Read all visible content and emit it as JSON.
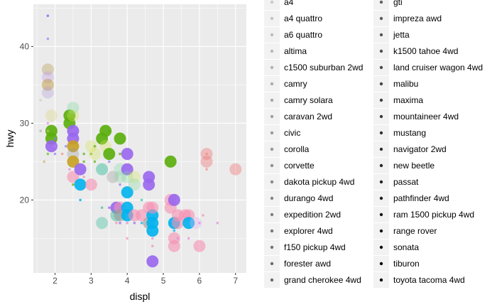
{
  "chart_data": {
    "type": "scatter",
    "xlabel": "displ",
    "ylabel": "hwy",
    "xlim": [
      1.4,
      7.3
    ],
    "ylim": [
      10.5,
      45.5
    ],
    "x_ticks": [
      2,
      3,
      4,
      5,
      6,
      7
    ],
    "y_ticks": [
      20,
      30,
      40
    ],
    "grid": true,
    "legend_position": "right",
    "legend": {
      "left": [
        "a4",
        "a4 quattro",
        "a6 quattro",
        "altima",
        "c1500 suburban 2wd",
        "camry",
        "camry solara",
        "caravan 2wd",
        "civic",
        "corolla",
        "corvette",
        "dakota pickup 4wd",
        "durango 4wd",
        "expedition 2wd",
        "explorer 4wd",
        "f150 pickup 4wd",
        "forester awd",
        "grand cherokee 4wd"
      ],
      "right": [
        "gti",
        "impreza awd",
        "jetta",
        "k1500 tahoe 4wd",
        "land cruiser wagon 4wd",
        "malibu",
        "maxima",
        "mountaineer 4wd",
        "mustang",
        "navigator 2wd",
        "new beetle",
        "passat",
        "pathfinder 4wd",
        "ram 1500 pickup 4wd",
        "range rover",
        "sonata",
        "tiburon",
        "toyota tacoma 4wd"
      ]
    },
    "points": [
      {
        "x": 1.8,
        "y": 44,
        "size": 1,
        "alpha": 0.9,
        "color": "#8b7cf6"
      },
      {
        "x": 1.8,
        "y": 41,
        "size": 1,
        "alpha": 0.8,
        "color": "#a78bfa"
      },
      {
        "x": 1.8,
        "y": 37,
        "size": 4,
        "alpha": 0.4,
        "color": "#b9a25c"
      },
      {
        "x": 1.8,
        "y": 36,
        "size": 4,
        "alpha": 0.4,
        "color": "#c4a3e8"
      },
      {
        "x": 1.8,
        "y": 35,
        "size": 4,
        "alpha": 0.5,
        "color": "#c09a40"
      },
      {
        "x": 1.8,
        "y": 34,
        "size": 4,
        "alpha": 0.35,
        "color": "#b39ddb"
      },
      {
        "x": 1.6,
        "y": 33,
        "size": 1,
        "alpha": 0.5,
        "color": "#c0c0c0"
      },
      {
        "x": 1.9,
        "y": 31,
        "size": 4,
        "alpha": 0.3,
        "color": "#d8d070"
      },
      {
        "x": 1.8,
        "y": 30,
        "size": 1,
        "alpha": 0.7,
        "color": "#e38bd8"
      },
      {
        "x": 1.6,
        "y": 29,
        "size": 1,
        "alpha": 0.6,
        "color": "#a8a8a8"
      },
      {
        "x": 1.9,
        "y": 29,
        "size": 4,
        "alpha": 0.9,
        "color": "#5aae0a"
      },
      {
        "x": 1.9,
        "y": 28,
        "size": 4,
        "alpha": 0.9,
        "color": "#5aae0a"
      },
      {
        "x": 1.9,
        "y": 27,
        "size": 4,
        "alpha": 0.9,
        "color": "#9966ee"
      },
      {
        "x": 1.8,
        "y": 29,
        "size": 1,
        "alpha": 0.6,
        "color": "#d0c070"
      },
      {
        "x": 1.8,
        "y": 26,
        "size": 1,
        "alpha": 0.6,
        "color": "#5aae0a"
      },
      {
        "x": 1.7,
        "y": 25,
        "size": 1,
        "alpha": 0.6,
        "color": "#d7a24c"
      },
      {
        "x": 2.0,
        "y": 28,
        "size": 1,
        "alpha": 0.7,
        "color": "#8b7cf6"
      },
      {
        "x": 2.0,
        "y": 26,
        "size": 1,
        "alpha": 0.7,
        "color": "#8b7cf6"
      },
      {
        "x": 2.0,
        "y": 27,
        "size": 1,
        "alpha": 0.7,
        "color": "#a78bfa"
      },
      {
        "x": 2.2,
        "y": 26,
        "size": 1,
        "alpha": 0.6,
        "color": "#f08080"
      },
      {
        "x": 2.3,
        "y": 27,
        "size": 1,
        "alpha": 0.7,
        "color": "#8b7cf6"
      },
      {
        "x": 2.4,
        "y": 31,
        "size": 4,
        "alpha": 0.9,
        "color": "#5aae0a"
      },
      {
        "x": 2.4,
        "y": 30,
        "size": 4,
        "alpha": 0.9,
        "color": "#5aae0a"
      },
      {
        "x": 2.5,
        "y": 32,
        "size": 4,
        "alpha": 0.35,
        "color": "#7ed6a0"
      },
      {
        "x": 2.5,
        "y": 31,
        "size": 4,
        "alpha": 0.35,
        "color": "#d4e157"
      },
      {
        "x": 2.5,
        "y": 29,
        "size": 4,
        "alpha": 0.9,
        "color": "#9966ee"
      },
      {
        "x": 2.5,
        "y": 28,
        "size": 4,
        "alpha": 0.9,
        "color": "#9966ee"
      },
      {
        "x": 2.5,
        "y": 27,
        "size": 4,
        "alpha": 0.9,
        "color": "#c8a020"
      },
      {
        "x": 2.5,
        "y": 26,
        "size": 4,
        "alpha": 0.35,
        "color": "#9a9a9a"
      },
      {
        "x": 2.5,
        "y": 25,
        "size": 4,
        "alpha": 0.9,
        "color": "#c8a020"
      },
      {
        "x": 2.5,
        "y": 23,
        "size": 4,
        "alpha": 0.6,
        "color": "#f78fb3"
      },
      {
        "x": 2.4,
        "y": 24,
        "size": 1,
        "alpha": 0.7,
        "color": "#e38bd8"
      },
      {
        "x": 2.5,
        "y": 22,
        "size": 1,
        "alpha": 0.7,
        "color": "#5aae0a"
      },
      {
        "x": 2.7,
        "y": 24,
        "size": 4,
        "alpha": 0.9,
        "color": "#9966ee"
      },
      {
        "x": 2.7,
        "y": 22,
        "size": 4,
        "alpha": 0.9,
        "color": "#00b2ee"
      },
      {
        "x": 2.7,
        "y": 20,
        "size": 1,
        "alpha": 0.8,
        "color": "#00b2ee"
      },
      {
        "x": 2.8,
        "y": 26,
        "size": 1,
        "alpha": 0.7,
        "color": "#5aae0a"
      },
      {
        "x": 2.8,
        "y": 25,
        "size": 1,
        "alpha": 0.7,
        "color": "#5aae0a"
      },
      {
        "x": 2.8,
        "y": 24,
        "size": 1,
        "alpha": 0.7,
        "color": "#8b7cf6"
      },
      {
        "x": 2.8,
        "y": 23,
        "size": 1,
        "alpha": 0.7,
        "color": "#f78fb3"
      },
      {
        "x": 3.0,
        "y": 27,
        "size": 4,
        "alpha": 0.35,
        "color": "#d4e157"
      },
      {
        "x": 3.0,
        "y": 26,
        "size": 1,
        "alpha": 0.7,
        "color": "#5aae0a"
      },
      {
        "x": 3.0,
        "y": 22,
        "size": 4,
        "alpha": 0.6,
        "color": "#f78fb3"
      },
      {
        "x": 3.1,
        "y": 26,
        "size": 4,
        "alpha": 0.35,
        "color": "#d4e157"
      },
      {
        "x": 3.1,
        "y": 25,
        "size": 1,
        "alpha": 0.7,
        "color": "#5aae0a"
      },
      {
        "x": 3.1,
        "y": 27,
        "size": 1,
        "alpha": 0.7,
        "color": "#5aae0a"
      },
      {
        "x": 3.3,
        "y": 28,
        "size": 4,
        "alpha": 0.9,
        "color": "#5aae0a"
      },
      {
        "x": 3.3,
        "y": 24,
        "size": 4,
        "alpha": 0.5,
        "color": "#40c0a0"
      },
      {
        "x": 3.3,
        "y": 17,
        "size": 4,
        "alpha": 0.4,
        "color": "#40c0a0"
      },
      {
        "x": 3.3,
        "y": 19,
        "size": 1,
        "alpha": 0.7,
        "color": "#40c0a0"
      },
      {
        "x": 3.4,
        "y": 29,
        "size": 4,
        "alpha": 0.9,
        "color": "#5aae0a"
      },
      {
        "x": 3.4,
        "y": 27,
        "size": 4,
        "alpha": 0.35,
        "color": "#d4e157"
      },
      {
        "x": 3.5,
        "y": 26,
        "size": 4,
        "alpha": 0.9,
        "color": "#5aae0a"
      },
      {
        "x": 3.5,
        "y": 29,
        "size": 1,
        "alpha": 0.7,
        "color": "#5aae0a"
      },
      {
        "x": 3.5,
        "y": 25,
        "size": 1,
        "alpha": 0.7,
        "color": "#8b7cf6"
      },
      {
        "x": 3.5,
        "y": 19,
        "size": 1,
        "alpha": 0.7,
        "color": "#9966ee"
      },
      {
        "x": 3.6,
        "y": 23,
        "size": 4,
        "alpha": 0.35,
        "color": "#9a9a9a"
      },
      {
        "x": 3.7,
        "y": 19,
        "size": 4,
        "alpha": 0.9,
        "color": "#9966ee"
      },
      {
        "x": 3.7,
        "y": 18,
        "size": 4,
        "alpha": 0.5,
        "color": "#40c0a0"
      },
      {
        "x": 3.7,
        "y": 17,
        "size": 1,
        "alpha": 0.7,
        "color": "#f78fb3"
      },
      {
        "x": 3.8,
        "y": 28,
        "size": 4,
        "alpha": 0.9,
        "color": "#5aae0a"
      },
      {
        "x": 3.8,
        "y": 26,
        "size": 1,
        "alpha": 0.7,
        "color": "#5aae0a"
      },
      {
        "x": 3.8,
        "y": 24,
        "size": 4,
        "alpha": 0.3,
        "color": "#7ed6a0"
      },
      {
        "x": 3.8,
        "y": 23,
        "size": 4,
        "alpha": 0.3,
        "color": "#7ed6a0"
      },
      {
        "x": 3.8,
        "y": 22,
        "size": 1,
        "alpha": 0.7,
        "color": "#8b7cf6"
      },
      {
        "x": 3.8,
        "y": 19,
        "size": 4,
        "alpha": 0.6,
        "color": "#f78fb3"
      },
      {
        "x": 3.8,
        "y": 18,
        "size": 4,
        "alpha": 0.6,
        "color": "#9a9a9a"
      },
      {
        "x": 3.8,
        "y": 17,
        "size": 1,
        "alpha": 0.7,
        "color": "#9966ee"
      },
      {
        "x": 4.0,
        "y": 26,
        "size": 4,
        "alpha": 0.9,
        "color": "#9966ee"
      },
      {
        "x": 4.0,
        "y": 24,
        "size": 4,
        "alpha": 0.9,
        "color": "#9966ee"
      },
      {
        "x": 4.0,
        "y": 23,
        "size": 4,
        "alpha": 0.3,
        "color": "#7ed6a0"
      },
      {
        "x": 4.0,
        "y": 21,
        "size": 4,
        "alpha": 0.9,
        "color": "#00b2ee"
      },
      {
        "x": 4.0,
        "y": 19,
        "size": 4,
        "alpha": 0.9,
        "color": "#00b2ee"
      },
      {
        "x": 4.0,
        "y": 18,
        "size": 4,
        "alpha": 0.9,
        "color": "#00b2ee"
      },
      {
        "x": 4.0,
        "y": 17,
        "size": 1,
        "alpha": 0.7,
        "color": "#e38bd8"
      },
      {
        "x": 4.0,
        "y": 15,
        "size": 1,
        "alpha": 0.7,
        "color": "#f78fb3"
      },
      {
        "x": 4.2,
        "y": 23,
        "size": 4,
        "alpha": 0.3,
        "color": "#d4e157"
      },
      {
        "x": 4.2,
        "y": 22,
        "size": 4,
        "alpha": 0.3,
        "color": "#7ed6a0"
      },
      {
        "x": 4.2,
        "y": 18,
        "size": 4,
        "alpha": 0.6,
        "color": "#f78fb3"
      },
      {
        "x": 4.2,
        "y": 17,
        "size": 1,
        "alpha": 0.7,
        "color": "#9966ee"
      },
      {
        "x": 4.4,
        "y": 20,
        "size": 1,
        "alpha": 0.7,
        "color": "#40c0a0"
      },
      {
        "x": 4.4,
        "y": 18,
        "size": 4,
        "alpha": 0.6,
        "color": "#f78fb3"
      },
      {
        "x": 4.4,
        "y": 17,
        "size": 1,
        "alpha": 0.7,
        "color": "#00b2ee"
      },
      {
        "x": 4.6,
        "y": 23,
        "size": 4,
        "alpha": 0.9,
        "color": "#9966ee"
      },
      {
        "x": 4.6,
        "y": 22,
        "size": 4,
        "alpha": 0.9,
        "color": "#9966ee"
      },
      {
        "x": 4.6,
        "y": 19,
        "size": 4,
        "alpha": 0.6,
        "color": "#f78fb3"
      },
      {
        "x": 4.6,
        "y": 17,
        "size": 4,
        "alpha": 0.6,
        "color": "#9a9a9a"
      },
      {
        "x": 4.7,
        "y": 18,
        "size": 4,
        "alpha": 0.9,
        "color": "#00b2ee"
      },
      {
        "x": 4.7,
        "y": 17,
        "size": 4,
        "alpha": 0.9,
        "color": "#00b2ee"
      },
      {
        "x": 4.7,
        "y": 16,
        "size": 4,
        "alpha": 0.9,
        "color": "#00b2ee"
      },
      {
        "x": 4.7,
        "y": 15,
        "size": 1,
        "alpha": 0.7,
        "color": "#e38bd8"
      },
      {
        "x": 4.7,
        "y": 14,
        "size": 1,
        "alpha": 0.7,
        "color": "#f78fb3"
      },
      {
        "x": 4.7,
        "y": 12,
        "size": 4,
        "alpha": 0.9,
        "color": "#9966ee"
      },
      {
        "x": 4.7,
        "y": 19,
        "size": 4,
        "alpha": 0.6,
        "color": "#f78fb3"
      },
      {
        "x": 5.2,
        "y": 25,
        "size": 4,
        "alpha": 0.9,
        "color": "#5aae0a"
      },
      {
        "x": 5.2,
        "y": 20,
        "size": 4,
        "alpha": 0.6,
        "color": "#f78fb3"
      },
      {
        "x": 5.2,
        "y": 19,
        "size": 4,
        "alpha": 0.6,
        "color": "#f78fb3"
      },
      {
        "x": 5.2,
        "y": 17,
        "size": 1,
        "alpha": 0.7,
        "color": "#e38bd8"
      },
      {
        "x": 5.3,
        "y": 20,
        "size": 4,
        "alpha": 0.9,
        "color": "#9966ee"
      },
      {
        "x": 5.3,
        "y": 17,
        "size": 4,
        "alpha": 0.9,
        "color": "#00b2ee"
      },
      {
        "x": 5.3,
        "y": 16,
        "size": 1,
        "alpha": 0.7,
        "color": "#00b2ee"
      },
      {
        "x": 5.3,
        "y": 15,
        "size": 4,
        "alpha": 0.6,
        "color": "#f78fb3"
      },
      {
        "x": 5.3,
        "y": 14,
        "size": 4,
        "alpha": 0.6,
        "color": "#f78fb3"
      },
      {
        "x": 5.4,
        "y": 18,
        "size": 4,
        "alpha": 0.6,
        "color": "#f78fb3"
      },
      {
        "x": 5.4,
        "y": 17,
        "size": 4,
        "alpha": 0.6,
        "color": "#f78fb3"
      },
      {
        "x": 5.4,
        "y": 15,
        "size": 1,
        "alpha": 0.7,
        "color": "#e38bd8"
      },
      {
        "x": 5.6,
        "y": 18,
        "size": 4,
        "alpha": 0.6,
        "color": "#f78fb3"
      },
      {
        "x": 5.7,
        "y": 18,
        "size": 4,
        "alpha": 0.6,
        "color": "#f78fb3"
      },
      {
        "x": 5.7,
        "y": 17,
        "size": 4,
        "alpha": 0.9,
        "color": "#00b2ee"
      },
      {
        "x": 5.7,
        "y": 15,
        "size": 1,
        "alpha": 0.7,
        "color": "#e38bd8"
      },
      {
        "x": 5.9,
        "y": 17,
        "size": 4,
        "alpha": 0.35,
        "color": "#e1b0f0"
      },
      {
        "x": 6.0,
        "y": 14,
        "size": 4,
        "alpha": 0.6,
        "color": "#f78fb3"
      },
      {
        "x": 6.0,
        "y": 17,
        "size": 1,
        "alpha": 0.7,
        "color": "#e38bd8"
      },
      {
        "x": 6.1,
        "y": 18,
        "size": 1,
        "alpha": 0.7,
        "color": "#f78fb3"
      },
      {
        "x": 6.2,
        "y": 26,
        "size": 4,
        "alpha": 0.45,
        "color": "#f08080"
      },
      {
        "x": 6.2,
        "y": 25,
        "size": 4,
        "alpha": 0.45,
        "color": "#f08080"
      },
      {
        "x": 6.2,
        "y": 24,
        "size": 1,
        "alpha": 0.6,
        "color": "#f08080"
      },
      {
        "x": 6.2,
        "y": 26,
        "size": 1,
        "alpha": 0.6,
        "color": "#f08080"
      },
      {
        "x": 6.5,
        "y": 17,
        "size": 1,
        "alpha": 0.7,
        "color": "#e38bd8"
      },
      {
        "x": 7.0,
        "y": 24,
        "size": 4,
        "alpha": 0.45,
        "color": "#f08080"
      }
    ]
  }
}
